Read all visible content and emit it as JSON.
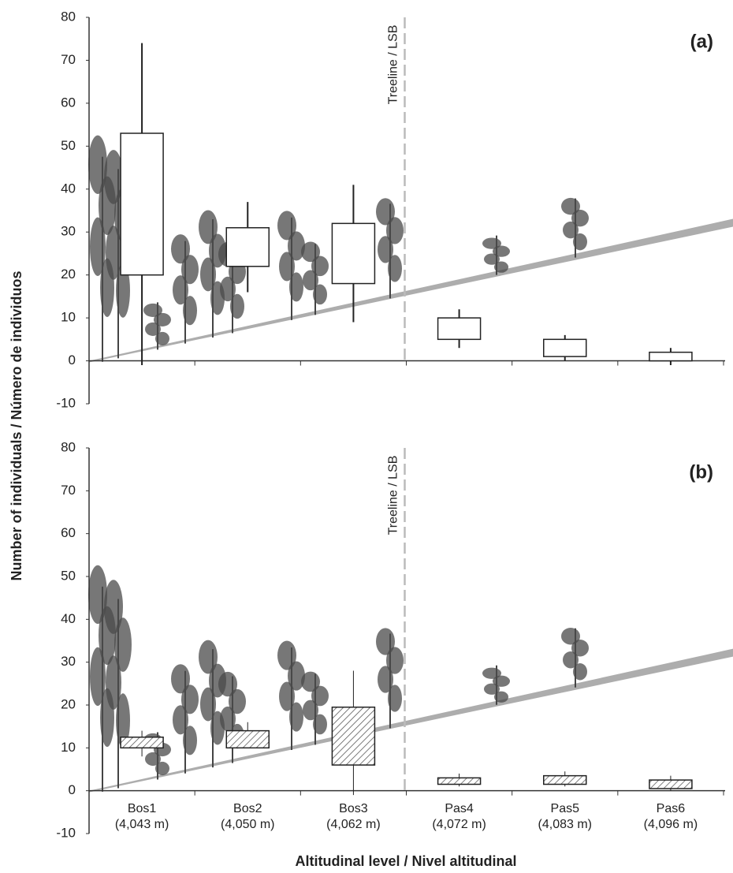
{
  "y_label": "Number of individuals / Número de individuos",
  "x_label": "Altitudinal level / Nivel altitudinal",
  "chart_data": [
    {
      "type": "box",
      "panel_label": "(a)",
      "annotation": "Treeline / LSB",
      "ylim": [
        -10,
        80
      ],
      "yticks": [
        -10,
        0,
        10,
        20,
        30,
        40,
        50,
        60,
        70,
        80
      ],
      "color": "#ffffff",
      "hatched": false,
      "boxes": [
        {
          "low": -1,
          "q1": 20,
          "q3": 53,
          "high": 74
        },
        {
          "low": 16,
          "q1": 22,
          "q3": 31,
          "high": 37
        },
        {
          "low": 9,
          "q1": 18,
          "q3": 32,
          "high": 41
        },
        {
          "low": 3,
          "q1": 5,
          "q3": 10,
          "high": 12
        },
        {
          "low": 0,
          "q1": 1,
          "q3": 5,
          "high": 6
        },
        {
          "low": -1,
          "q1": 0,
          "q3": 2,
          "high": 3
        }
      ]
    },
    {
      "type": "box",
      "panel_label": "(b)",
      "annotation": "Treeline / LSB",
      "ylim": [
        -10,
        80
      ],
      "yticks": [
        -10,
        0,
        10,
        20,
        30,
        40,
        50,
        60,
        70,
        80
      ],
      "color": "#ffffff",
      "hatched": true,
      "categories": [
        "Bos1",
        "Bos2",
        "Bos3",
        "Pas4",
        "Pas5",
        "Pas6"
      ],
      "category_elevations": [
        "(4,043 m)",
        "(4,050 m)",
        "(4,062 m)",
        "(4,072 m)",
        "(4,083 m)",
        "(4,096 m)"
      ],
      "boxes": [
        {
          "low": 8,
          "q1": 10,
          "q3": 12.5,
          "high": 14
        },
        {
          "low": 10,
          "q1": 10,
          "q3": 14,
          "high": 16
        },
        {
          "low": -1,
          "q1": 6,
          "q3": 19.5,
          "high": 28
        },
        {
          "low": 1,
          "q1": 1.5,
          "q3": 3,
          "high": 4
        },
        {
          "low": 1,
          "q1": 1.5,
          "q3": 3.5,
          "high": 4.5
        },
        {
          "low": 0,
          "q1": 0.5,
          "q3": 2.5,
          "high": 3.5
        }
      ]
    }
  ]
}
